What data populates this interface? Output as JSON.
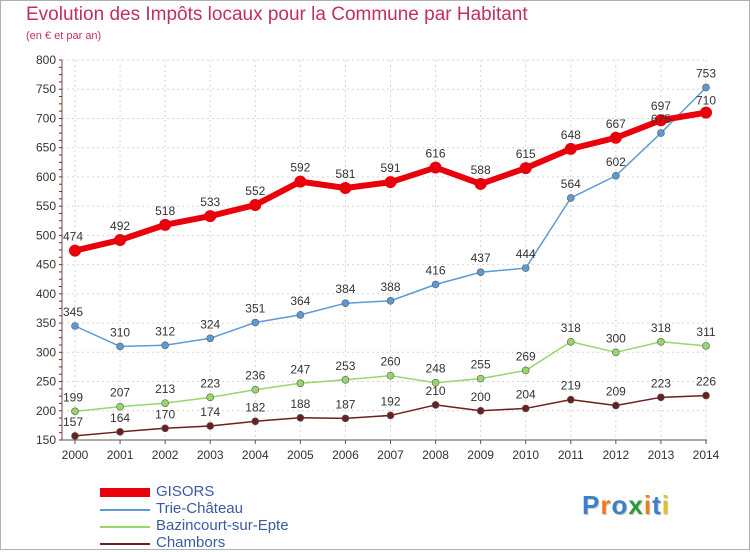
{
  "title": "Evolution des Impôts locaux pour la Commune par Habitant",
  "subtitle": "(en € et par an)",
  "brand": {
    "letters": [
      "P",
      "r",
      "o",
      "x",
      "i",
      "t",
      "i"
    ],
    "colors": [
      "#3d7fc8",
      "#f07c22",
      "#3d7fc8",
      "#2f9a3c",
      "#f07c22",
      "#3d7fc8",
      "#e6c020"
    ]
  },
  "chart_data": {
    "type": "line",
    "title": "Evolution des Impôts locaux pour la Commune par Habitant",
    "subtitle": "(en € et par an)",
    "x": [
      "2000",
      "2001",
      "2002",
      "2003",
      "2004",
      "2005",
      "2006",
      "2007",
      "2008",
      "2009",
      "2010",
      "2011",
      "2012",
      "2013",
      "2014"
    ],
    "ylim": [
      150,
      800
    ],
    "yticks": [
      150,
      200,
      250,
      300,
      350,
      400,
      450,
      500,
      550,
      600,
      650,
      700,
      750,
      800
    ],
    "grid": true,
    "legend_position": "bottom-left",
    "series": [
      {
        "name": "GISORS",
        "color": "#e8000b",
        "values": [
          474,
          492,
          518,
          533,
          552,
          592,
          581,
          591,
          616,
          588,
          615,
          648,
          667,
          697,
          710
        ]
      },
      {
        "name": "Trie-Château",
        "color": "#5b9bd5",
        "values": [
          345,
          310,
          312,
          324,
          351,
          364,
          384,
          388,
          416,
          437,
          444,
          564,
          602,
          675,
          753
        ]
      },
      {
        "name": "Bazincourt-sur-Epte",
        "color": "#96d76a",
        "values": [
          199,
          207,
          213,
          223,
          236,
          247,
          253,
          260,
          248,
          255,
          269,
          318,
          300,
          318,
          311
        ]
      },
      {
        "name": "Chambors",
        "color": "#6b1f1f",
        "values": [
          157,
          164,
          170,
          174,
          182,
          188,
          187,
          192,
          210,
          200,
          204,
          219,
          209,
          223,
          226
        ]
      }
    ]
  }
}
